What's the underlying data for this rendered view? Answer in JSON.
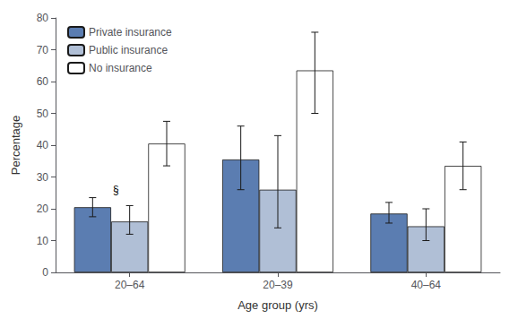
{
  "chart_data": {
    "type": "bar",
    "xlabel": "Age group (yrs)",
    "ylabel": "Percentage",
    "categories": [
      "20–64",
      "20–39",
      "40–64"
    ],
    "series": [
      {
        "name": "Private insurance",
        "color": "#5b7db1",
        "values": [
          20.5,
          35.5,
          18.5
        ],
        "errors_low": [
          3.0,
          9.5,
          3.0
        ],
        "errors_high": [
          3.0,
          10.5,
          3.5
        ]
      },
      {
        "name": "Public insurance",
        "color": "#b0bfd6",
        "values": [
          16.0,
          26.0,
          14.5
        ],
        "errors_low": [
          4.0,
          12.0,
          4.5
        ],
        "errors_high": [
          5.0,
          17.0,
          5.5
        ]
      },
      {
        "name": "No insurance",
        "color": "#ffffff",
        "values": [
          40.5,
          63.5,
          33.5
        ],
        "errors_low": [
          7.0,
          13.5,
          7.5
        ],
        "errors_high": [
          7.0,
          12.0,
          7.5
        ]
      }
    ],
    "annotations": [
      {
        "text": "§",
        "category": "20–64",
        "series": "Private insurance"
      }
    ],
    "ylim": [
      0,
      80
    ],
    "yticks": [
      0,
      10,
      20,
      30,
      40,
      50,
      60,
      70,
      80
    ],
    "grid": false,
    "legend": "upper left"
  }
}
